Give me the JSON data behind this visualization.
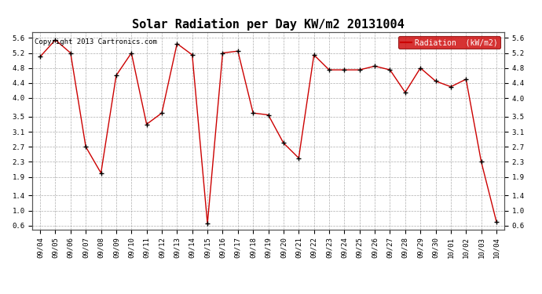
{
  "title": "Solar Radiation per Day KW/m2 20131004",
  "copyright": "Copyright 2013 Cartronics.com",
  "legend_label": "Radiation  (kW/m2)",
  "dates": [
    "09/04",
    "09/05",
    "09/06",
    "09/07",
    "09/08",
    "09/09",
    "09/10",
    "09/11",
    "09/12",
    "09/13",
    "09/14",
    "09/15",
    "09/16",
    "09/17",
    "09/18",
    "09/19",
    "09/20",
    "09/21",
    "09/22",
    "09/23",
    "09/24",
    "09/25",
    "09/26",
    "09/27",
    "09/28",
    "09/29",
    "09/30",
    "10/01",
    "10/02",
    "10/03",
    "10/04"
  ],
  "values": [
    5.1,
    5.55,
    5.2,
    2.7,
    2.0,
    4.6,
    5.2,
    3.3,
    3.6,
    5.45,
    5.15,
    0.65,
    5.2,
    5.25,
    3.6,
    3.55,
    2.8,
    2.4,
    5.15,
    4.75,
    4.75,
    4.75,
    4.85,
    4.75,
    4.15,
    4.8,
    4.45,
    4.3,
    4.5,
    2.3,
    0.7
  ],
  "line_color": "#cc0000",
  "marker_color": "#000000",
  "bg_color": "#ffffff",
  "grid_color": "#999999",
  "ylim": [
    0.5,
    5.75
  ],
  "yticks": [
    0.6,
    1.0,
    1.4,
    1.9,
    2.3,
    2.7,
    3.1,
    3.5,
    4.0,
    4.4,
    4.8,
    5.2,
    5.6
  ],
  "legend_bg": "#cc0000",
  "legend_text_color": "#ffffff",
  "title_fontsize": 11,
  "tick_fontsize": 6.5,
  "copyright_fontsize": 6.5
}
